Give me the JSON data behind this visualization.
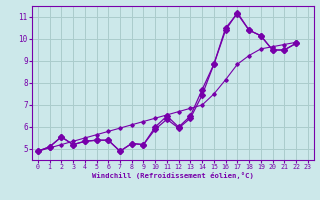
{
  "xlabel": "Windchill (Refroidissement éolien,°C)",
  "bg_color": "#cce8ea",
  "grid_color": "#aacccc",
  "line_color": "#7700aa",
  "xlim": [
    -0.5,
    23.5
  ],
  "ylim": [
    4.5,
    11.5
  ],
  "xticks": [
    0,
    1,
    2,
    3,
    4,
    5,
    6,
    7,
    8,
    9,
    10,
    11,
    12,
    13,
    14,
    15,
    16,
    17,
    18,
    19,
    20,
    21,
    22,
    23
  ],
  "yticks": [
    5,
    6,
    7,
    8,
    9,
    10,
    11
  ],
  "line1_x": [
    0,
    1,
    2,
    3,
    4,
    5,
    6,
    7,
    8,
    9,
    10,
    11,
    12,
    13,
    14,
    15,
    16,
    17,
    18,
    19,
    20,
    21,
    22
  ],
  "line1_y": [
    4.9,
    5.05,
    5.2,
    5.35,
    5.5,
    5.65,
    5.8,
    5.95,
    6.1,
    6.25,
    6.4,
    6.55,
    6.7,
    6.85,
    7.0,
    7.5,
    8.15,
    8.85,
    9.25,
    9.55,
    9.65,
    9.75,
    9.85
  ],
  "line2_x": [
    0,
    1,
    2,
    3,
    4,
    5,
    6,
    7,
    8,
    9,
    10,
    11,
    12,
    13,
    14,
    15,
    16,
    17,
    18,
    19,
    20,
    21,
    22
  ],
  "line2_y": [
    4.9,
    5.1,
    5.55,
    5.2,
    5.35,
    5.4,
    5.4,
    4.9,
    5.25,
    5.2,
    6.0,
    6.5,
    6.0,
    6.5,
    7.7,
    8.85,
    10.4,
    11.2,
    10.4,
    10.15,
    9.5,
    9.5,
    9.8
  ],
  "line3_x": [
    0,
    1,
    2,
    3,
    4,
    5,
    6,
    7,
    8,
    9,
    10,
    11,
    12,
    13,
    14,
    15,
    16,
    17,
    18,
    19,
    20,
    21,
    22
  ],
  "line3_y": [
    4.9,
    5.1,
    5.55,
    5.2,
    5.35,
    5.4,
    5.4,
    4.9,
    5.25,
    5.2,
    5.9,
    6.35,
    5.95,
    6.4,
    7.45,
    8.85,
    10.5,
    11.15,
    10.4,
    10.15,
    9.5,
    9.5,
    9.8
  ]
}
